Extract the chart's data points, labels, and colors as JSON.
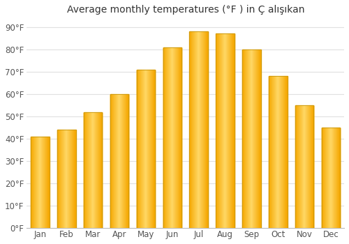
{
  "title": "Average monthly temperatures (°F ) in Ç alışıkan",
  "months": [
    "Jan",
    "Feb",
    "Mar",
    "Apr",
    "May",
    "Jun",
    "Jul",
    "Aug",
    "Sep",
    "Oct",
    "Nov",
    "Dec"
  ],
  "values": [
    41,
    44,
    52,
    60,
    71,
    81,
    88,
    87,
    80,
    68,
    55,
    45
  ],
  "bar_color_bottom": "#F5A800",
  "bar_color_top": "#FFD966",
  "bar_edge_color": "#C8960A",
  "ylim": [
    0,
    93
  ],
  "yticks": [
    0,
    10,
    20,
    30,
    40,
    50,
    60,
    70,
    80,
    90
  ],
  "ytick_labels": [
    "0°F",
    "10°F",
    "20°F",
    "30°F",
    "40°F",
    "50°F",
    "60°F",
    "70°F",
    "80°F",
    "90°F"
  ],
  "background_color": "#ffffff",
  "plot_bg_color": "#ffffff",
  "grid_color": "#e0e0e0",
  "title_fontsize": 10,
  "tick_fontsize": 8.5,
  "bar_width": 0.7
}
